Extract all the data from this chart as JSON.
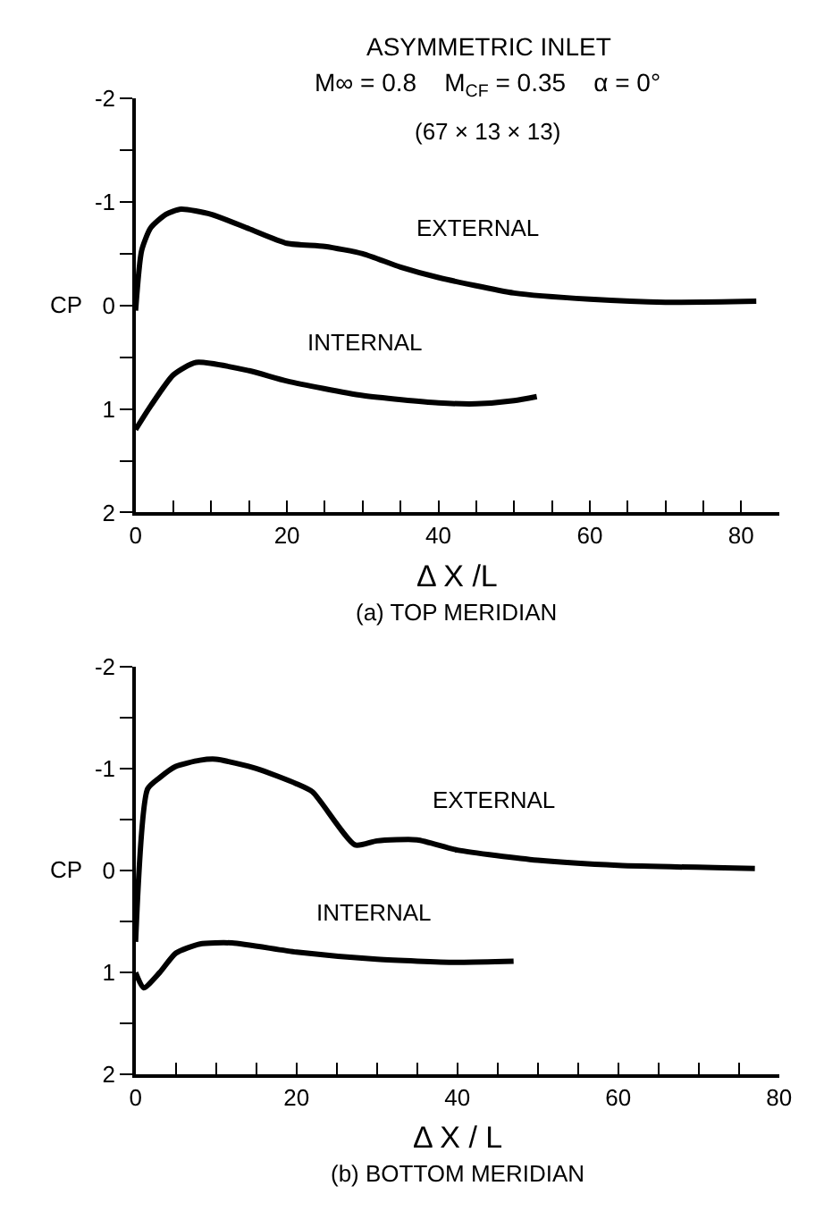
{
  "chart_data": [
    {
      "type": "line",
      "title": "ASYMMETRIC INLET",
      "subtitle": "M∞ = 0.8    M$_{CF}$ = 0.35    α = 0°",
      "annotations": [
        "(67 × 13 × 13)",
        "(a) TOP MERIDIAN"
      ],
      "xlabel": "Δ X /L",
      "ylabel": "CP",
      "series": [
        {
          "name": "EXTERNAL",
          "color": "#000000",
          "x": [
            0,
            0.8,
            2,
            4,
            6,
            10,
            15,
            20,
            25,
            30,
            35,
            40,
            50,
            60,
            70,
            82
          ],
          "values": [
            0.05,
            -0.53,
            -0.75,
            -0.88,
            -0.93,
            -0.88,
            -0.74,
            -0.6,
            -0.57,
            -0.5,
            -0.37,
            -0.27,
            -0.12,
            -0.06,
            -0.03,
            -0.04
          ]
        },
        {
          "name": "INTERNAL",
          "color": "#000000",
          "x": [
            0,
            2,
            5,
            8,
            15,
            20,
            30,
            40,
            45,
            50,
            53
          ],
          "values": [
            1.2,
            0.97,
            0.67,
            0.55,
            0.63,
            0.73,
            0.87,
            0.94,
            0.95,
            0.92,
            0.88
          ]
        }
      ],
      "xlim": [
        0,
        85
      ],
      "ylim": [
        2,
        -2
      ],
      "xticks": [
        0,
        {
          "value": 5,
          "label": null
        },
        {
          "value": 10,
          "label": null
        },
        {
          "value": 15,
          "label": null
        },
        20,
        {
          "value": 25,
          "label": null
        },
        {
          "value": 30,
          "label": null
        },
        {
          "value": 35,
          "label": null
        },
        40,
        {
          "value": 45,
          "label": null
        },
        {
          "value": 50,
          "label": null
        },
        {
          "value": 55,
          "label": null
        },
        60,
        {
          "value": 65,
          "label": null
        },
        {
          "value": 70,
          "label": null
        },
        {
          "value": 75,
          "label": null
        },
        80
      ],
      "yticks": [
        -2,
        {
          "value": -1.5,
          "label": null
        },
        -1,
        {
          "value": -0.5,
          "label": null
        },
        0,
        {
          "value": 0.5,
          "label": null
        },
        1,
        {
          "value": 1.5,
          "label": null
        },
        2
      ],
      "line_style": "solid"
    },
    {
      "type": "line",
      "annotations": [
        "(b) BOTTOM MERIDIAN"
      ],
      "xlabel": "Δ X / L",
      "ylabel": "CP",
      "series": [
        {
          "name": "EXTERNAL",
          "color": "#000000",
          "x": [
            0,
            1.5,
            3,
            5,
            8,
            10,
            15,
            20,
            22,
            27.3,
            30,
            35,
            40,
            50,
            60,
            77
          ],
          "values": [
            0.7,
            -0.8,
            -0.91,
            -1.02,
            -1.08,
            -1.09,
            -1.0,
            -0.85,
            -0.77,
            -0.25,
            -0.29,
            -0.3,
            -0.2,
            -0.1,
            -0.05,
            -0.02
          ]
        },
        {
          "name": "INTERNAL",
          "color": "#000000",
          "x": [
            0,
            1,
            3,
            5,
            8,
            12,
            20,
            30,
            40,
            47
          ],
          "values": [
            1.0,
            1.15,
            1.0,
            0.81,
            0.72,
            0.71,
            0.8,
            0.87,
            0.9,
            0.89
          ]
        }
      ],
      "xlim": [
        0,
        80
      ],
      "ylim": [
        2,
        -2
      ],
      "xticks": [
        0,
        {
          "value": 5,
          "label": null
        },
        {
          "value": 10,
          "label": null
        },
        {
          "value": 15,
          "label": null
        },
        20,
        {
          "value": 25,
          "label": null
        },
        {
          "value": 30,
          "label": null
        },
        {
          "value": 35,
          "label": null
        },
        40,
        {
          "value": 45,
          "label": null
        },
        {
          "value": 50,
          "label": null
        },
        {
          "value": 55,
          "label": null
        },
        60,
        {
          "value": 65,
          "label": null
        },
        {
          "value": 70,
          "label": null
        },
        {
          "value": 75,
          "label": null
        },
        80
      ],
      "yticks": [
        -2,
        {
          "value": -1.5,
          "label": null
        },
        -1,
        {
          "value": -0.5,
          "label": null
        },
        0,
        {
          "value": 0.5,
          "label": null
        },
        1,
        {
          "value": 1.5,
          "label": null
        },
        2
      ],
      "line_style": "solid"
    }
  ]
}
